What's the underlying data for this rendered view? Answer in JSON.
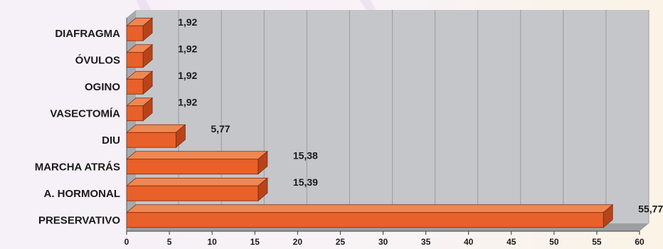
{
  "chart_data": {
    "type": "bar",
    "orientation": "horizontal",
    "categories": [
      "DIAFRAGMA",
      "ÓVULOS",
      "OGINO",
      "VASECTOMÍA",
      "DIU",
      "MARCHA ATRÁS",
      "A. HORMONAL",
      "PRESERVATIVO"
    ],
    "values": [
      1.92,
      1.92,
      1.92,
      1.92,
      5.77,
      15.38,
      15.39,
      55.77
    ],
    "value_labels": [
      "1,92",
      "1,92",
      "1,92",
      "1,92",
      "5,77",
      "15,38",
      "15,39",
      "55,77"
    ],
    "xlim": [
      0,
      60
    ],
    "xticks": [
      0,
      5,
      10,
      15,
      20,
      25,
      30,
      35,
      40,
      45,
      50,
      55,
      60
    ],
    "grid": true,
    "bar_color": "#e8602a",
    "bar_side_color": "#b8431a",
    "bar_top_color": "#f08752",
    "plot_bg_color": "#c4c6c9",
    "gridline_color": "#9a9c9f"
  }
}
